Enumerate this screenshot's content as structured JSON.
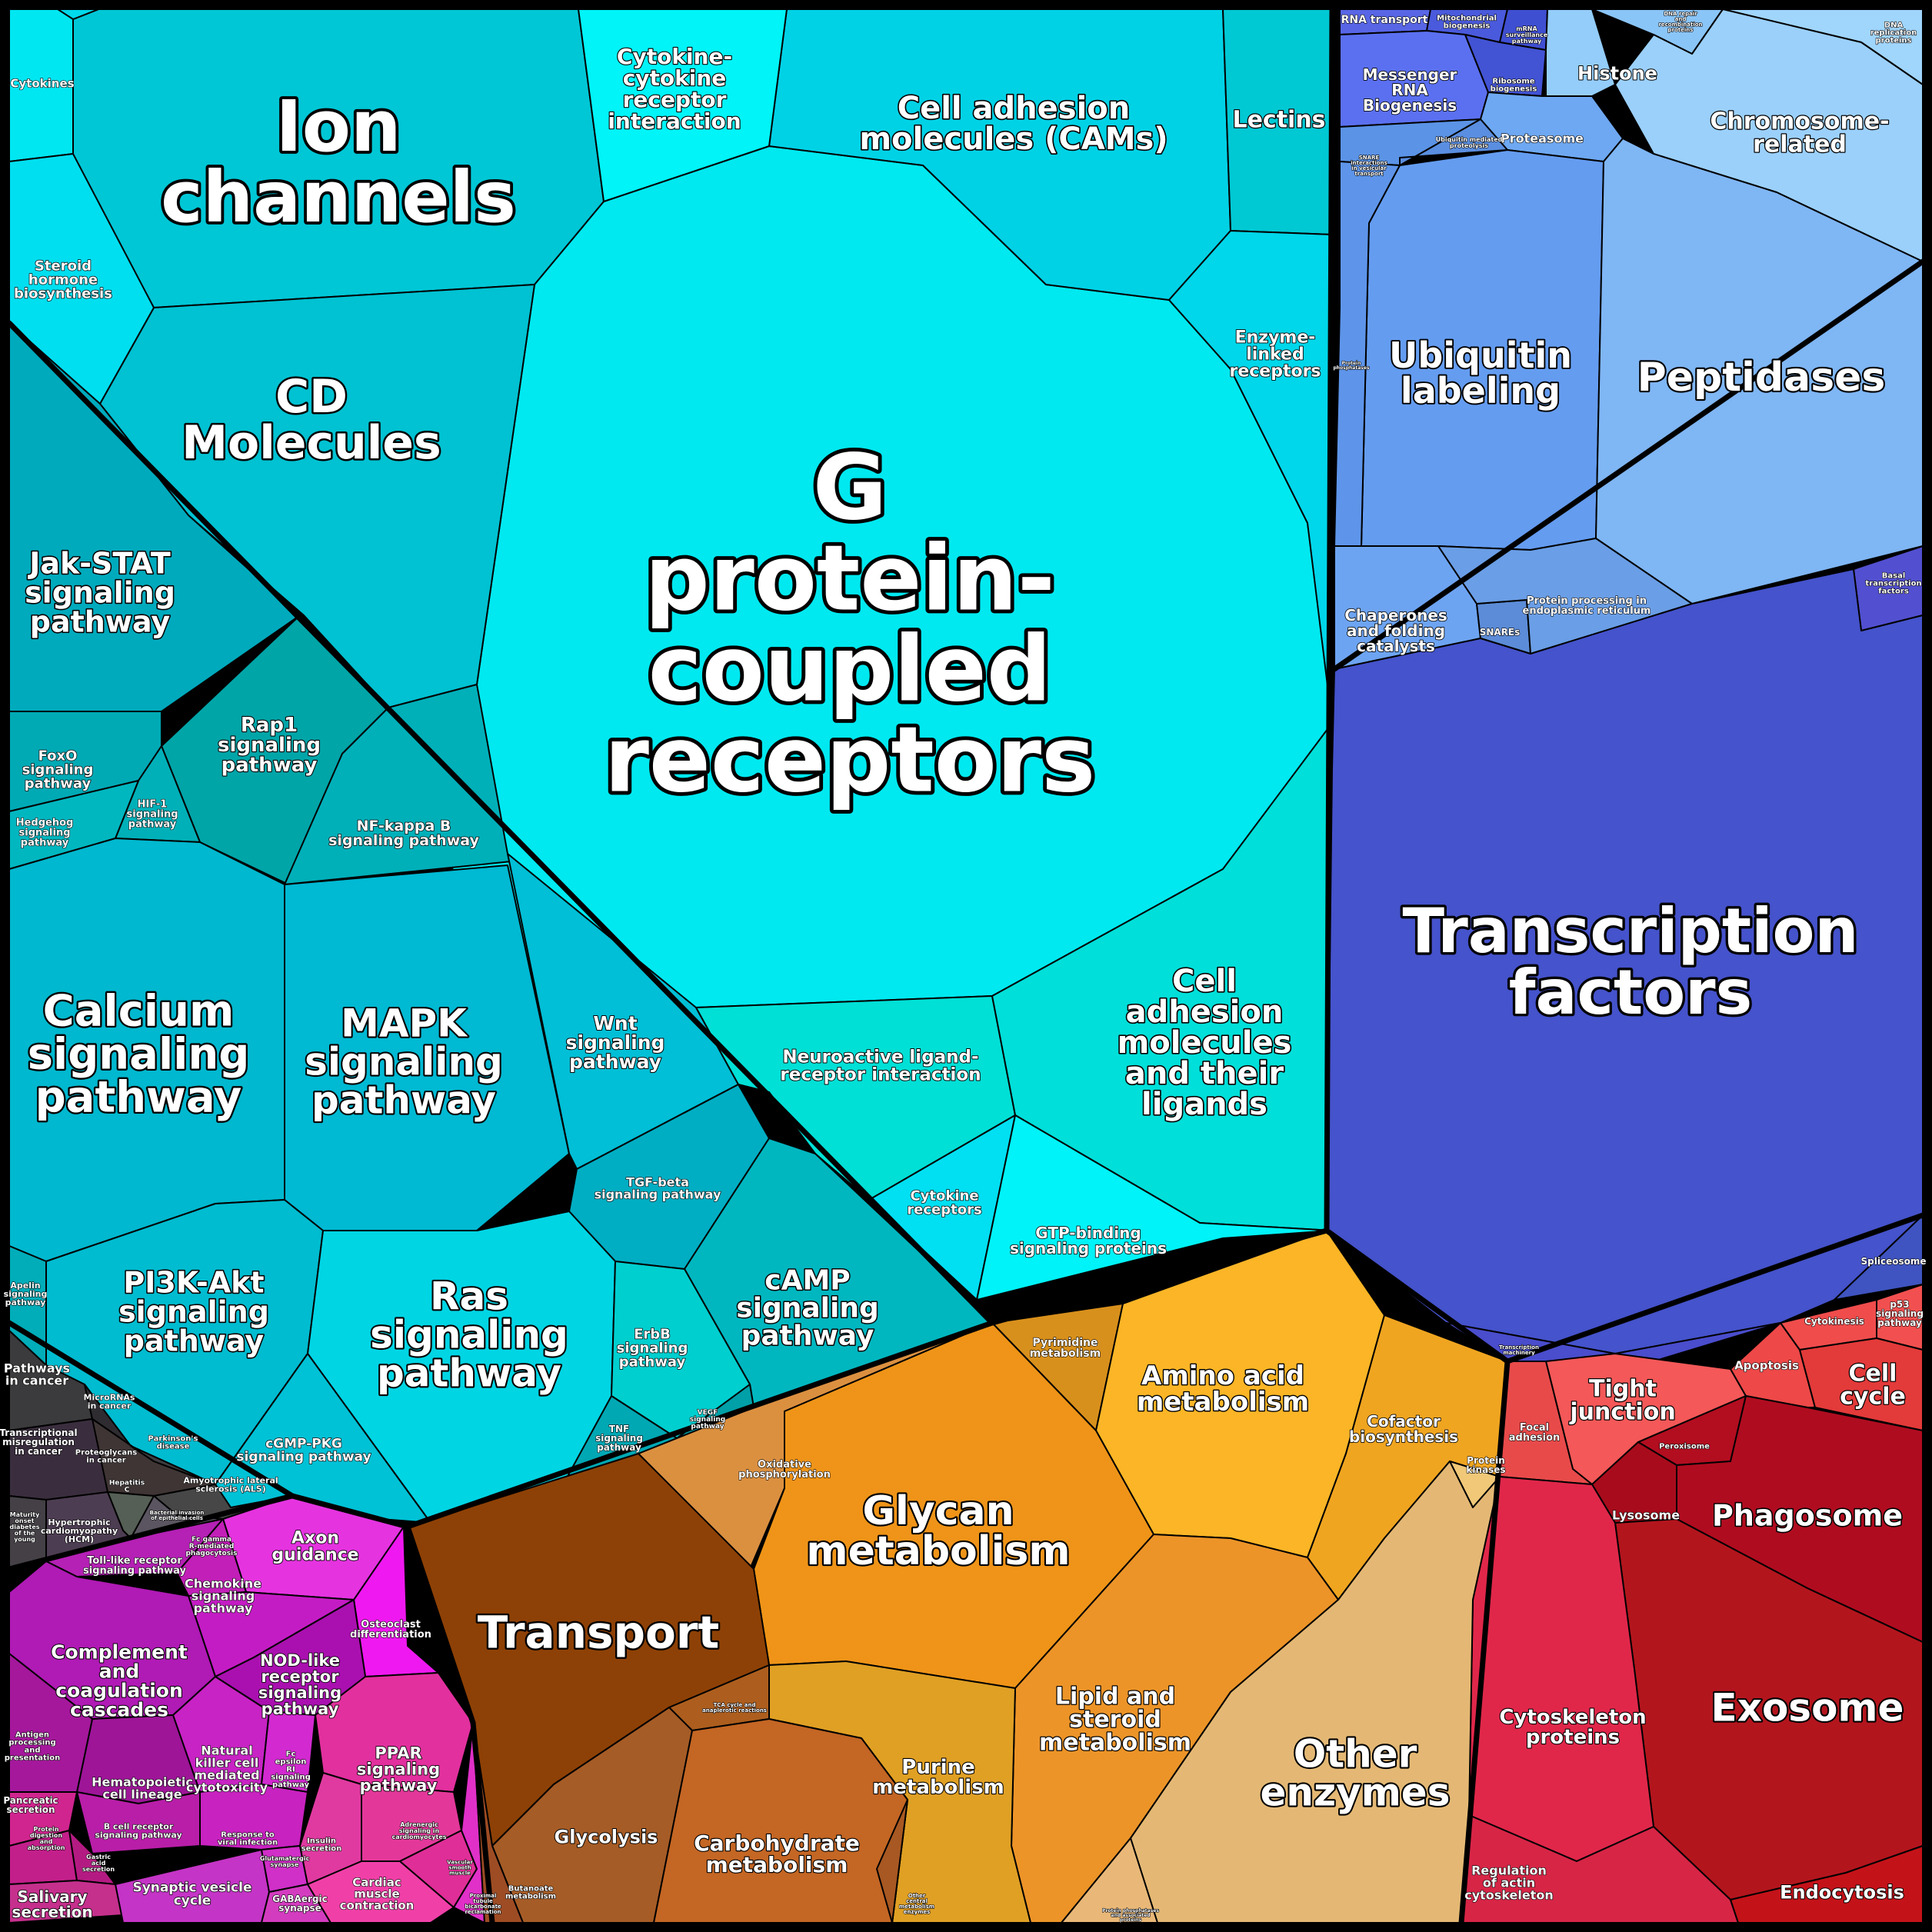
{
  "diagram": {
    "cells": [
      {
        "id": "ion-channels",
        "label": "Ion channels",
        "color": "#00c7d6"
      },
      {
        "id": "gpcr",
        "label": "G protein-coupled receptors",
        "color": "#00e9f0"
      },
      {
        "id": "cd-molecules",
        "label": "CD Molecules",
        "color": "#00c2d2"
      },
      {
        "id": "cell-adhesion-cams",
        "label": "Cell adhesion molecules (CAMs)",
        "color": "#00d2e6"
      },
      {
        "id": "cytokine-cytokine",
        "label": "Cytokine-cytokine receptor interaction",
        "color": "#00f4f8"
      },
      {
        "id": "lectins",
        "label": "Lectins",
        "color": "#00c9d4"
      },
      {
        "id": "enzyme-linked",
        "label": "Enzyme-linked receptors",
        "color": "#00d7ea"
      },
      {
        "id": "cytokines",
        "label": "Cytokines",
        "color": "#00e7f2"
      },
      {
        "id": "ecm-receptor",
        "label": "ECM-receptor interaction",
        "color": "#00d9ea"
      },
      {
        "id": "steroid-hormone",
        "label": "Steroid hormone biosynthesis",
        "color": "#00dff0"
      },
      {
        "id": "jak-stat",
        "label": "Jak-STAT signaling pathway",
        "color": "#00aabd"
      },
      {
        "id": "rap1",
        "label": "Rap1 signaling pathway",
        "color": "#00a5a8"
      },
      {
        "id": "foxo",
        "label": "FoxO signaling pathway",
        "color": "#00aab5"
      },
      {
        "id": "hif1",
        "label": "HIF-1 signaling pathway",
        "color": "#00b0b8"
      },
      {
        "id": "hedgehog",
        "label": "Hedgehog signaling pathway",
        "color": "#00b7c0"
      },
      {
        "id": "nfkb",
        "label": "NF-kappa B signaling pathway",
        "color": "#00b0b9"
      },
      {
        "id": "calcium",
        "label": "Calcium signaling pathway",
        "color": "#00b8cf"
      },
      {
        "id": "mapk",
        "label": "MAPK signaling pathway",
        "color": "#00b9d3"
      },
      {
        "id": "wnt",
        "label": "Wnt signaling pathway",
        "color": "#00bfd6"
      },
      {
        "id": "neuroactive",
        "label": "Neuroactive ligand-receptor interaction",
        "color": "#00e0d6"
      },
      {
        "id": "cell-adhesion-ligands",
        "label": "Cell adhesion molecules and their ligands",
        "color": "#00dfd9"
      },
      {
        "id": "tgf-beta",
        "label": "TGF-beta signaling pathway",
        "color": "#00aec3"
      },
      {
        "id": "camp",
        "label": "cAMP signaling pathway",
        "color": "#00b7c0"
      },
      {
        "id": "cytokine-receptors",
        "label": "Cytokine receptors",
        "color": "#00e0f2"
      },
      {
        "id": "gtp-binding",
        "label": "GTP-binding signaling proteins",
        "color": "#00f3f8"
      },
      {
        "id": "pi3k-akt",
        "label": "PI3K-Akt signaling pathway",
        "color": "#00bcd0"
      },
      {
        "id": "ras",
        "label": "Ras signaling pathway",
        "color": "#00d5e4"
      },
      {
        "id": "erbb",
        "label": "ErbB signaling pathway",
        "color": "#00cfcf"
      },
      {
        "id": "tnf",
        "label": "TNF signaling pathway",
        "color": "#00a8b4"
      },
      {
        "id": "vegf",
        "label": "VEGF signaling pathway",
        "color": "#00a0a8"
      },
      {
        "id": "cgmp",
        "label": "cGMP-PKG signaling pathway",
        "color": "#00c2d6"
      },
      {
        "id": "apelin",
        "label": "Apelin signaling pathway",
        "color": "#00adb9"
      },
      {
        "id": "pathways-in-cancer",
        "label": "Pathways in cancer",
        "color": "#3b3a3c"
      },
      {
        "id": "micrornas",
        "label": "MicroRNAs in cancer",
        "color": "#2e2c30"
      },
      {
        "id": "transcriptional-misreg",
        "label": "Transcriptional misregulation in cancer",
        "color": "#3a2e3e"
      },
      {
        "id": "proteoglycans",
        "label": "Proteoglycans in cancer",
        "color": "#3f3535"
      },
      {
        "id": "parkinsons",
        "label": "Parkinson's disease",
        "color": "#3d3d3f"
      },
      {
        "id": "als",
        "label": "Amyotrophic lateral sclerosis (ALS)",
        "color": "#474747"
      },
      {
        "id": "hepatitis-c",
        "label": "Hepatitis C",
        "color": "#555f55"
      },
      {
        "id": "bacterial-invasion",
        "label": "Bacterial invasion of epithelial cells",
        "color": "#5a5560"
      },
      {
        "id": "hcm",
        "label": "Hypertrophic cardiomyopathy (HCM)",
        "color": "#4d3d52"
      },
      {
        "id": "mody",
        "label": "Maturity onset diabetes of the young",
        "color": "#444046"
      },
      {
        "id": "axon-guidance",
        "label": "Axon guidance",
        "color": "#e533e0"
      },
      {
        "id": "osteoclast",
        "label": "Osteoclast differentiation",
        "color": "#f018f0"
      },
      {
        "id": "toll-like",
        "label": "Toll-like receptor signaling pathway",
        "color": "#b520b5"
      },
      {
        "id": "fc-gamma",
        "label": "Fc gamma R-mediated phagocytosis",
        "color": "#c21fb8"
      },
      {
        "id": "chemokine",
        "label": "Chemokine signaling pathway",
        "color": "#c41cc4"
      },
      {
        "id": "complement",
        "label": "Complement and coagulation cascades",
        "color": "#b01ab5"
      },
      {
        "id": "nod-like",
        "label": "NOD-like receptor signaling pathway",
        "color": "#aa10b0"
      },
      {
        "id": "ppar",
        "label": "PPAR signaling pathway",
        "color": "#e2309e"
      },
      {
        "id": "hematopoietic",
        "label": "Hematopoietic cell lineage",
        "color": "#9e1598"
      },
      {
        "id": "nk-cell",
        "label": "Natural killer cell mediated cytotoxicity",
        "color": "#c823c4"
      },
      {
        "id": "fc-epsilon",
        "label": "Fc epsilon RI signaling pathway",
        "color": "#d22ad0"
      },
      {
        "id": "b-cell",
        "label": "B cell receptor signaling pathway",
        "color": "#b91ea8"
      },
      {
        "id": "response-viral",
        "label": "Response to viral infection",
        "color": "#c822c0"
      },
      {
        "id": "antigen",
        "label": "Antigen processing and presentation",
        "color": "#a5189c"
      },
      {
        "id": "pancreatic",
        "label": "Pancreatic secretion",
        "color": "#d0258f"
      },
      {
        "id": "protein-digestion",
        "label": "Protein digestion and absorption",
        "color": "#c21f8a"
      },
      {
        "id": "gastric",
        "label": "Gastric acid secretion",
        "color": "#b41b82"
      },
      {
        "id": "salivary",
        "label": "Salivary secretion",
        "color": "#c5308d"
      },
      {
        "id": "synaptic-vesicle",
        "label": "Synaptic vesicle cycle",
        "color": "#c434c6"
      },
      {
        "id": "glutamatergic",
        "label": "Glutamatergic synapse",
        "color": "#d02fc8"
      },
      {
        "id": "gabaergic",
        "label": "GABAergic synapse",
        "color": "#d43cc0"
      },
      {
        "id": "insulin",
        "label": "Insulin secretion",
        "color": "#e03aa0"
      },
      {
        "id": "adrenergic",
        "label": "Adrenergic signaling in cardiomyocytes",
        "color": "#e3389a"
      },
      {
        "id": "cardiac-muscle",
        "label": "Cardiac muscle contraction",
        "color": "#f040a8"
      },
      {
        "id": "vascular",
        "label": "Vascular smooth muscle contraction",
        "color": "#e02e98"
      },
      {
        "id": "proximal-tubule",
        "label": "Proximal tubule bicarbonate reclamation",
        "color": "#e030c8"
      },
      {
        "id": "rna-transport",
        "label": "RNA transport",
        "color": "#5866e6"
      },
      {
        "id": "mito-biogenesis",
        "label": "Mitochondrial biogenesis",
        "color": "#4a5adc"
      },
      {
        "id": "mrna-surveillance",
        "label": "mRNA surveillance pathway",
        "color": "#3f4fd2"
      },
      {
        "id": "messenger-rna",
        "label": "Messenger RNA Biogenesis",
        "color": "#5b70f0"
      },
      {
        "id": "ribosome-biogenesis",
        "label": "Ribosome biogenesis",
        "color": "#4253d4"
      },
      {
        "id": "histone",
        "label": "Histone",
        "color": "#94cdfa"
      },
      {
        "id": "dna-repair",
        "label": "DNA repair and recombination proteins",
        "color": "#8ac5f8"
      },
      {
        "id": "dna-replication",
        "label": "DNA replication proteins",
        "color": "#a0d5fc"
      },
      {
        "id": "chromosome",
        "label": "Chromosome-related",
        "color": "#9bd0fb"
      },
      {
        "id": "proteasome",
        "label": "Proteasome",
        "color": "#6ea8f2"
      },
      {
        "id": "snare",
        "label": "SNARE interactions in vesicular transport",
        "color": "#5b93e6"
      },
      {
        "id": "ubiquitin-proteolysis",
        "label": "Ubiquitin mediated proteolysis",
        "color": "#5a8ee0"
      },
      {
        "id": "ubiquitin-labeling",
        "label": "Ubiquitin labeling",
        "color": "#649cf0"
      },
      {
        "id": "protein-phosphatases",
        "label": "Protein phosphatases",
        "color": "#5e95ea"
      },
      {
        "id": "peptidases",
        "label": "Peptidases",
        "color": "#7fb6f4"
      },
      {
        "id": "chaperones",
        "label": "Chaperones and folding catalysts",
        "color": "#6da4f2"
      },
      {
        "id": "snares",
        "label": "SNAREs",
        "color": "#5c8cd8"
      },
      {
        "id": "protein-er",
        "label": "Protein processing in endoplasmic reticulum",
        "color": "#6a9ee6"
      },
      {
        "id": "basal-tf",
        "label": "Basal transcription factors",
        "color": "#5250d0"
      },
      {
        "id": "transcription-factors",
        "label": "Transcription factors",
        "color": "#4553cc"
      },
      {
        "id": "spliceosome",
        "label": "Spliceosome",
        "color": "#3f54c0"
      },
      {
        "id": "transcription-machinery",
        "label": "Transcription machinery",
        "color": "#4a4dcc"
      },
      {
        "id": "tight-junction",
        "label": "Tight junction",
        "color": "#f45858"
      },
      {
        "id": "focal-adhesion",
        "label": "Focal adhesion",
        "color": "#e84a4a"
      },
      {
        "id": "apoptosis",
        "label": "Apoptosis",
        "color": "#ee4848"
      },
      {
        "id": "cytokinesis",
        "label": "Cytokinesis",
        "color": "#f04c4c"
      },
      {
        "id": "p53",
        "label": "p53 signaling pathway",
        "color": "#f25050"
      },
      {
        "id": "cell-cycle",
        "label": "Cell cycle",
        "color": "#e33a3a"
      },
      {
        "id": "peroxisome",
        "label": "Peroxisome",
        "color": "#b30d20"
      },
      {
        "id": "lysosome",
        "label": "Lysosome",
        "color": "#a80c1c"
      },
      {
        "id": "phagosome",
        "label": "Phagosome",
        "color": "#b00c20"
      },
      {
        "id": "exosome",
        "label": "Exosome",
        "color": "#b3151d"
      },
      {
        "id": "cytoskeleton",
        "label": "Cytoskeleton proteins",
        "color": "#e0274a"
      },
      {
        "id": "regulation-actin",
        "label": "Regulation of actin cytoskeleton",
        "color": "#d72546"
      },
      {
        "id": "endocytosis",
        "label": "Endocytosis",
        "color": "#c41219"
      },
      {
        "id": "pyrimidine",
        "label": "Pyrimidine metabolism",
        "color": "#d8901c"
      },
      {
        "id": "amino-acid",
        "label": "Amino acid metabolism",
        "color": "#fbb526"
      },
      {
        "id": "cofactor",
        "label": "Cofactor biosynthesis",
        "color": "#f0a520"
      },
      {
        "id": "oxidative-phos",
        "label": "Oxidative phosphorylation",
        "color": "#db9040"
      },
      {
        "id": "glycan",
        "label": "Glycan metabolism",
        "color": "#ef9418"
      },
      {
        "id": "protein-kinases",
        "label": "Protein kinases",
        "color": "#f0c878"
      },
      {
        "id": "transport",
        "label": "Transport",
        "color": "#8e4106"
      },
      {
        "id": "lipid-steroid",
        "label": "Lipid and steroid metabolism",
        "color": "#ec9428"
      },
      {
        "id": "other-enzymes",
        "label": "Other enzymes",
        "color": "#e4b874"
      },
      {
        "id": "purine",
        "label": "Purine metabolism",
        "color": "#e0a024"
      },
      {
        "id": "tca-cycle",
        "label": "TCA cycle and anaplerotic reactions",
        "color": "#ad5e1e"
      },
      {
        "id": "glycolysis",
        "label": "Glycolysis",
        "color": "#a65c26"
      },
      {
        "id": "carbohydrate",
        "label": "Carbohydrate metabolism",
        "color": "#c46624"
      },
      {
        "id": "butanoate",
        "label": "Butanoate metabolism",
        "color": "#9e4c24"
      },
      {
        "id": "other-central",
        "label": "Other central metabolism enzymes",
        "color": "#a85822"
      },
      {
        "id": "protein-phosphatases-2",
        "label": "Protein phosphatases and associated proteins",
        "color": "#e9b878"
      }
    ]
  }
}
